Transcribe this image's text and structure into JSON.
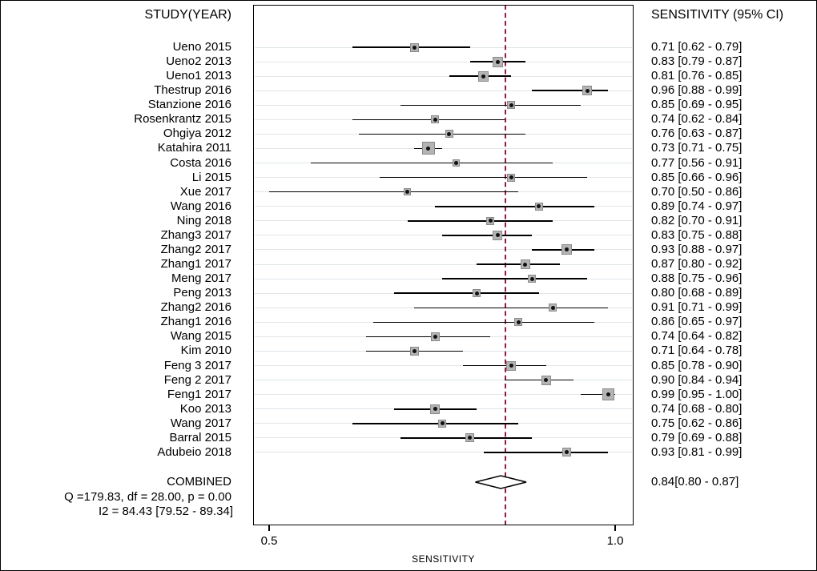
{
  "header": {
    "left": "STUDY(YEAR)",
    "right": "SENSITIVITY (95% CI)"
  },
  "colors": {
    "pooled_line": "#c00434",
    "grid_line": "#e0e6ea",
    "square_fill": "#b4b4b4",
    "square_border": "#8a8a8a",
    "ci_line": "#000000"
  },
  "chart_data": {
    "type": "scatter",
    "subtype": "forest-plot",
    "title": "",
    "xlabel": "SENSITIVITY",
    "x_ticks": [
      0.5,
      1.0
    ],
    "x_tick_labels": [
      "0.5",
      "1.0"
    ],
    "xlim": [
      0.478,
      1.027
    ],
    "grid": true,
    "pooled_reference_line": 0.84,
    "studies": [
      {
        "label": "Ueno 2015",
        "est": 0.71,
        "lo": 0.62,
        "hi": 0.79,
        "text": "0.71 [0.62 - 0.79]"
      },
      {
        "label": "Ueno2 2013",
        "est": 0.83,
        "lo": 0.79,
        "hi": 0.87,
        "text": "0.83 [0.79 - 0.87]"
      },
      {
        "label": "Ueno1 2013",
        "est": 0.81,
        "lo": 0.76,
        "hi": 0.85,
        "text": "0.81 [0.76 - 0.85]"
      },
      {
        "label": "Thestrup 2016",
        "est": 0.96,
        "lo": 0.88,
        "hi": 0.99,
        "text": "0.96 [0.88 - 0.99]"
      },
      {
        "label": "Stanzione 2016",
        "est": 0.85,
        "lo": 0.69,
        "hi": 0.95,
        "text": "0.85 [0.69 - 0.95]"
      },
      {
        "label": "Rosenkrantz 2015",
        "est": 0.74,
        "lo": 0.62,
        "hi": 0.84,
        "text": "0.74 [0.62 - 0.84]"
      },
      {
        "label": "Ohgiya 2012",
        "est": 0.76,
        "lo": 0.63,
        "hi": 0.87,
        "text": "0.76 [0.63 - 0.87]"
      },
      {
        "label": "Katahira 2011",
        "est": 0.73,
        "lo": 0.71,
        "hi": 0.75,
        "text": "0.73 [0.71 - 0.75]"
      },
      {
        "label": "Costa 2016",
        "est": 0.77,
        "lo": 0.56,
        "hi": 0.91,
        "text": "0.77 [0.56 - 0.91]"
      },
      {
        "label": "Li 2015",
        "est": 0.85,
        "lo": 0.66,
        "hi": 0.96,
        "text": "0.85 [0.66 - 0.96]"
      },
      {
        "label": "Xue 2017",
        "est": 0.7,
        "lo": 0.5,
        "hi": 0.86,
        "text": "0.70 [0.50 - 0.86]"
      },
      {
        "label": "Wang 2016",
        "est": 0.89,
        "lo": 0.74,
        "hi": 0.97,
        "text": "0.89 [0.74 - 0.97]"
      },
      {
        "label": "Ning 2018",
        "est": 0.82,
        "lo": 0.7,
        "hi": 0.91,
        "text": "0.82 [0.70 - 0.91]"
      },
      {
        "label": "Zhang3 2017",
        "est": 0.83,
        "lo": 0.75,
        "hi": 0.88,
        "text": "0.83 [0.75 - 0.88]"
      },
      {
        "label": "Zhang2 2017",
        "est": 0.93,
        "lo": 0.88,
        "hi": 0.97,
        "text": "0.93 [0.88 - 0.97]"
      },
      {
        "label": "Zhang1 2017",
        "est": 0.87,
        "lo": 0.8,
        "hi": 0.92,
        "text": "0.87 [0.80 - 0.92]"
      },
      {
        "label": "Meng 2017",
        "est": 0.88,
        "lo": 0.75,
        "hi": 0.96,
        "text": "0.88 [0.75 - 0.96]"
      },
      {
        "label": "Peng 2013",
        "est": 0.8,
        "lo": 0.68,
        "hi": 0.89,
        "text": "0.80 [0.68 - 0.89]"
      },
      {
        "label": "Zhang2 2016",
        "est": 0.91,
        "lo": 0.71,
        "hi": 0.99,
        "text": "0.91 [0.71 - 0.99]"
      },
      {
        "label": "Zhang1 2016",
        "est": 0.86,
        "lo": 0.65,
        "hi": 0.97,
        "text": "0.86 [0.65 - 0.97]"
      },
      {
        "label": "Wang 2015",
        "est": 0.74,
        "lo": 0.64,
        "hi": 0.82,
        "text": "0.74 [0.64 - 0.82]"
      },
      {
        "label": "Kim 2010",
        "est": 0.71,
        "lo": 0.64,
        "hi": 0.78,
        "text": "0.71 [0.64 - 0.78]"
      },
      {
        "label": "Feng 3 2017",
        "est": 0.85,
        "lo": 0.78,
        "hi": 0.9,
        "text": "0.85 [0.78 - 0.90]"
      },
      {
        "label": "Feng 2 2017",
        "est": 0.9,
        "lo": 0.84,
        "hi": 0.94,
        "text": "0.90 [0.84 - 0.94]"
      },
      {
        "label": "Feng1 2017",
        "est": 0.99,
        "lo": 0.95,
        "hi": 1.0,
        "text": "0.99 [0.95 - 1.00]"
      },
      {
        "label": "Koo 2013",
        "est": 0.74,
        "lo": 0.68,
        "hi": 0.8,
        "text": "0.74 [0.68 - 0.80]"
      },
      {
        "label": "Wang 2017",
        "est": 0.75,
        "lo": 0.62,
        "hi": 0.86,
        "text": "0.75 [0.62 - 0.86]"
      },
      {
        "label": "Barral 2015",
        "est": 0.79,
        "lo": 0.69,
        "hi": 0.88,
        "text": "0.79 [0.69 - 0.88]"
      },
      {
        "label": "Adubeio 2018",
        "est": 0.93,
        "lo": 0.81,
        "hi": 0.99,
        "text": "0.93 [0.81 - 0.99]"
      }
    ],
    "combined": {
      "label": "COMBINED",
      "est": 0.84,
      "lo": 0.8,
      "hi": 0.87,
      "text": "0.84[0.80 - 0.87]"
    },
    "heterogeneity": {
      "q_line": "Q =179.83, df = 28.00, p =  0.00",
      "i2_line": "I2 = 84.43 [79.52 - 89.34]"
    }
  }
}
